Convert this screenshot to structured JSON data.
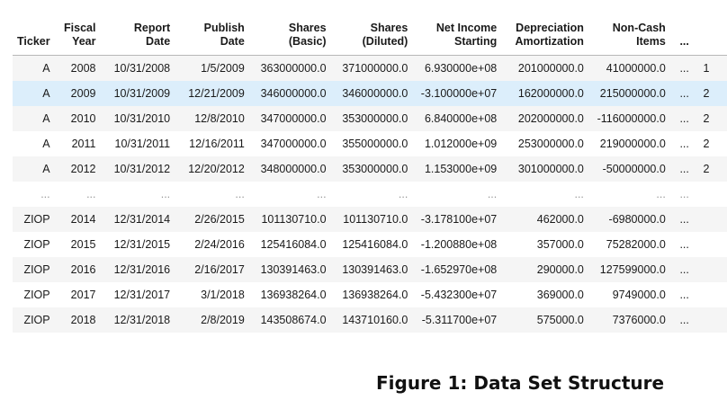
{
  "table": {
    "columns": [
      {
        "key": "ticker",
        "lines": [
          "Ticker",
          ""
        ]
      },
      {
        "key": "fiscal_year",
        "lines": [
          "Fiscal",
          "Year"
        ]
      },
      {
        "key": "report_date",
        "lines": [
          "Report",
          "Date"
        ]
      },
      {
        "key": "publish_date",
        "lines": [
          "Publish",
          "Date"
        ]
      },
      {
        "key": "shares_basic",
        "lines": [
          "Shares",
          "(Basic)"
        ]
      },
      {
        "key": "shares_diluted",
        "lines": [
          "Shares",
          "(Diluted)"
        ]
      },
      {
        "key": "net_income",
        "lines": [
          "Net Income",
          "Starting"
        ]
      },
      {
        "key": "depreciation",
        "lines": [
          "Depreciation",
          "Amortization"
        ]
      },
      {
        "key": "non_cash",
        "lines": [
          "Non-Cash",
          "Items"
        ]
      },
      {
        "key": "ellipsis",
        "lines": [
          "...",
          ""
        ]
      },
      {
        "key": "cut",
        "lines": [
          "",
          ""
        ]
      }
    ],
    "rows": [
      {
        "cells": [
          "A",
          "2008",
          "10/31/2008",
          "1/5/2009",
          "363000000.0",
          "371000000.0",
          "6.930000e+08",
          "201000000.0",
          "41000000.0",
          "...",
          "1"
        ],
        "highlight": false
      },
      {
        "cells": [
          "A",
          "2009",
          "10/31/2009",
          "12/21/2009",
          "346000000.0",
          "346000000.0",
          "-3.100000e+07",
          "162000000.0",
          "215000000.0",
          "...",
          "2"
        ],
        "highlight": true
      },
      {
        "cells": [
          "A",
          "2010",
          "10/31/2010",
          "12/8/2010",
          "347000000.0",
          "353000000.0",
          "6.840000e+08",
          "202000000.0",
          "-116000000.0",
          "...",
          "2"
        ],
        "highlight": false
      },
      {
        "cells": [
          "A",
          "2011",
          "10/31/2011",
          "12/16/2011",
          "347000000.0",
          "355000000.0",
          "1.012000e+09",
          "253000000.0",
          "219000000.0",
          "...",
          "2"
        ],
        "highlight": false
      },
      {
        "cells": [
          "A",
          "2012",
          "10/31/2012",
          "12/20/2012",
          "348000000.0",
          "353000000.0",
          "1.153000e+09",
          "301000000.0",
          "-50000000.0",
          "...",
          "2"
        ],
        "highlight": false
      },
      {
        "cells": [
          "...",
          "...",
          "...",
          "...",
          "...",
          "...",
          "...",
          "...",
          "...",
          "...",
          ""
        ],
        "highlight": false,
        "gap": true
      },
      {
        "cells": [
          "ZIOP",
          "2014",
          "12/31/2014",
          "2/26/2015",
          "101130710.0",
          "101130710.0",
          "-3.178100e+07",
          "462000.0",
          "-6980000.0",
          "...",
          ""
        ],
        "highlight": false
      },
      {
        "cells": [
          "ZIOP",
          "2015",
          "12/31/2015",
          "2/24/2016",
          "125416084.0",
          "125416084.0",
          "-1.200880e+08",
          "357000.0",
          "75282000.0",
          "...",
          ""
        ],
        "highlight": false
      },
      {
        "cells": [
          "ZIOP",
          "2016",
          "12/31/2016",
          "2/16/2017",
          "130391463.0",
          "130391463.0",
          "-1.652970e+08",
          "290000.0",
          "127599000.0",
          "...",
          ""
        ],
        "highlight": false
      },
      {
        "cells": [
          "ZIOP",
          "2017",
          "12/31/2017",
          "3/1/2018",
          "136938264.0",
          "136938264.0",
          "-5.432300e+07",
          "369000.0",
          "9749000.0",
          "...",
          ""
        ],
        "highlight": false
      },
      {
        "cells": [
          "ZIOP",
          "2018",
          "12/31/2018",
          "2/8/2019",
          "143508674.0",
          "143710160.0",
          "-5.311700e+07",
          "575000.0",
          "7376000.0",
          "...",
          ""
        ],
        "highlight": false
      }
    ]
  },
  "caption": "Figure 1: Data Set Structure"
}
